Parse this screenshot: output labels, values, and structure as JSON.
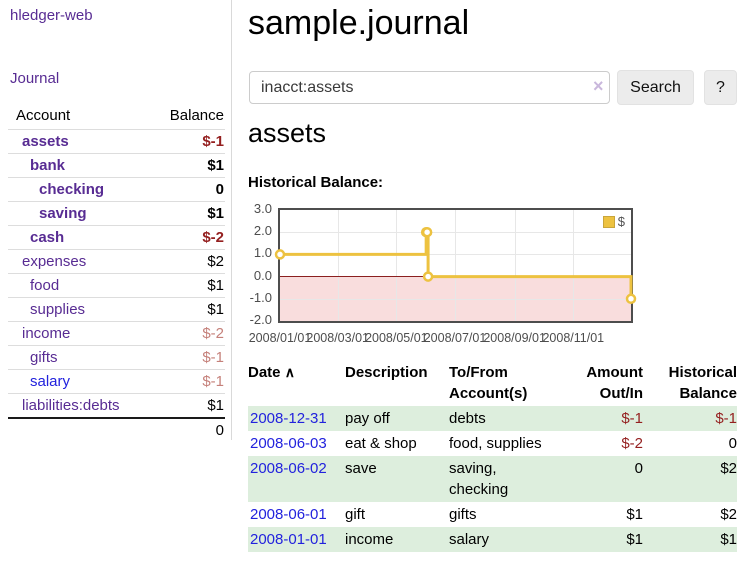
{
  "colors": {
    "accent_purple": "#582c93",
    "link_blue": "#2222dd",
    "negative_strong": "#941f1f",
    "negative_soft": "#c5807a",
    "row_stripe_green": "#ddeedd",
    "chart_line_gold": "#edc240",
    "chart_negative_fill": "#f9dddd",
    "chart_zero_line": "#8b1f1f"
  },
  "sidebar": {
    "brand": "hledger-web",
    "nav_journal": "Journal",
    "accounts": {
      "col_account": "Account",
      "col_balance": "Balance",
      "rows": [
        {
          "account": "assets",
          "balance": "$-1",
          "depth": 1,
          "bold": true
        },
        {
          "account": "bank",
          "balance": "$1",
          "depth": 2,
          "bold": true
        },
        {
          "account": "checking",
          "balance": "0",
          "depth": 3,
          "bold": true
        },
        {
          "account": "saving",
          "balance": "$1",
          "depth": 3,
          "bold": true
        },
        {
          "account": "cash",
          "balance": "$-2",
          "depth": 2,
          "bold": true
        },
        {
          "account": "expenses",
          "balance": "$2",
          "depth": 1,
          "bold": false
        },
        {
          "account": "food",
          "balance": "$1",
          "depth": 2,
          "bold": false
        },
        {
          "account": "supplies",
          "balance": "$1",
          "depth": 2,
          "bold": false
        },
        {
          "account": "income",
          "balance": "$-2",
          "depth": 1,
          "bold": false
        },
        {
          "account": "gifts",
          "balance": "$-1",
          "depth": 2,
          "bold": false
        },
        {
          "account": "salary",
          "balance": "$-1",
          "depth": 2,
          "bold": false,
          "link_color": "blue"
        },
        {
          "account": "liabilities:debts",
          "balance": "$1",
          "depth": 1,
          "bold": false
        }
      ],
      "total": "0"
    }
  },
  "main": {
    "title": "sample.journal",
    "search": {
      "value": "inacct:assets",
      "clear_icon": "×",
      "search_label": "Search",
      "help_label": "?"
    },
    "account_heading": "assets",
    "chart_heading": "Historical Balance:"
  },
  "chart_data": {
    "type": "line",
    "title": "Historical Balance",
    "step": true,
    "marker": "circle",
    "legend_label": "$",
    "legend_position": "top-right",
    "x": [
      "2008-01-01",
      "2008-06-01",
      "2008-06-02",
      "2008-06-03",
      "2008-12-31"
    ],
    "values": [
      1,
      2,
      2,
      0,
      -1
    ],
    "xlim": [
      "2008-01-01",
      "2008-12-31"
    ],
    "ylim": [
      -2,
      3
    ],
    "yticks": [
      "3.0",
      "2.0",
      "1.0",
      "0.0",
      "-1.0",
      "-2.0"
    ],
    "xticks": [
      "2008/01/01",
      "2008/03/01",
      "2008/05/01",
      "2008/07/01",
      "2008/09/01",
      "2008/11/01"
    ],
    "grid": true,
    "line_color": "#edc240",
    "negative_region_fill": "#f9dddd",
    "zero_line_color": "#8b1f1f"
  },
  "register": {
    "headers": {
      "date": "Date",
      "sort_icon": "∧",
      "description": "Description",
      "accounts": "To/From Account(s)",
      "amount": "Amount Out/In",
      "balance": "Historical Balance"
    },
    "rows": [
      {
        "date": "2008-12-31",
        "description": "pay off",
        "accounts": "debts",
        "amount": "$-1",
        "balance": "$-1"
      },
      {
        "date": "2008-06-03",
        "description": "eat & shop",
        "accounts": "food, supplies",
        "amount": "$-2",
        "balance": "0"
      },
      {
        "date": "2008-06-02",
        "description": "save",
        "accounts": "saving, checking",
        "amount": "0",
        "balance": "$2"
      },
      {
        "date": "2008-06-01",
        "description": "gift",
        "accounts": "gifts",
        "amount": "$1",
        "balance": "$2"
      },
      {
        "date": "2008-01-01",
        "description": "income",
        "accounts": "salary",
        "amount": "$1",
        "balance": "$1"
      }
    ]
  }
}
